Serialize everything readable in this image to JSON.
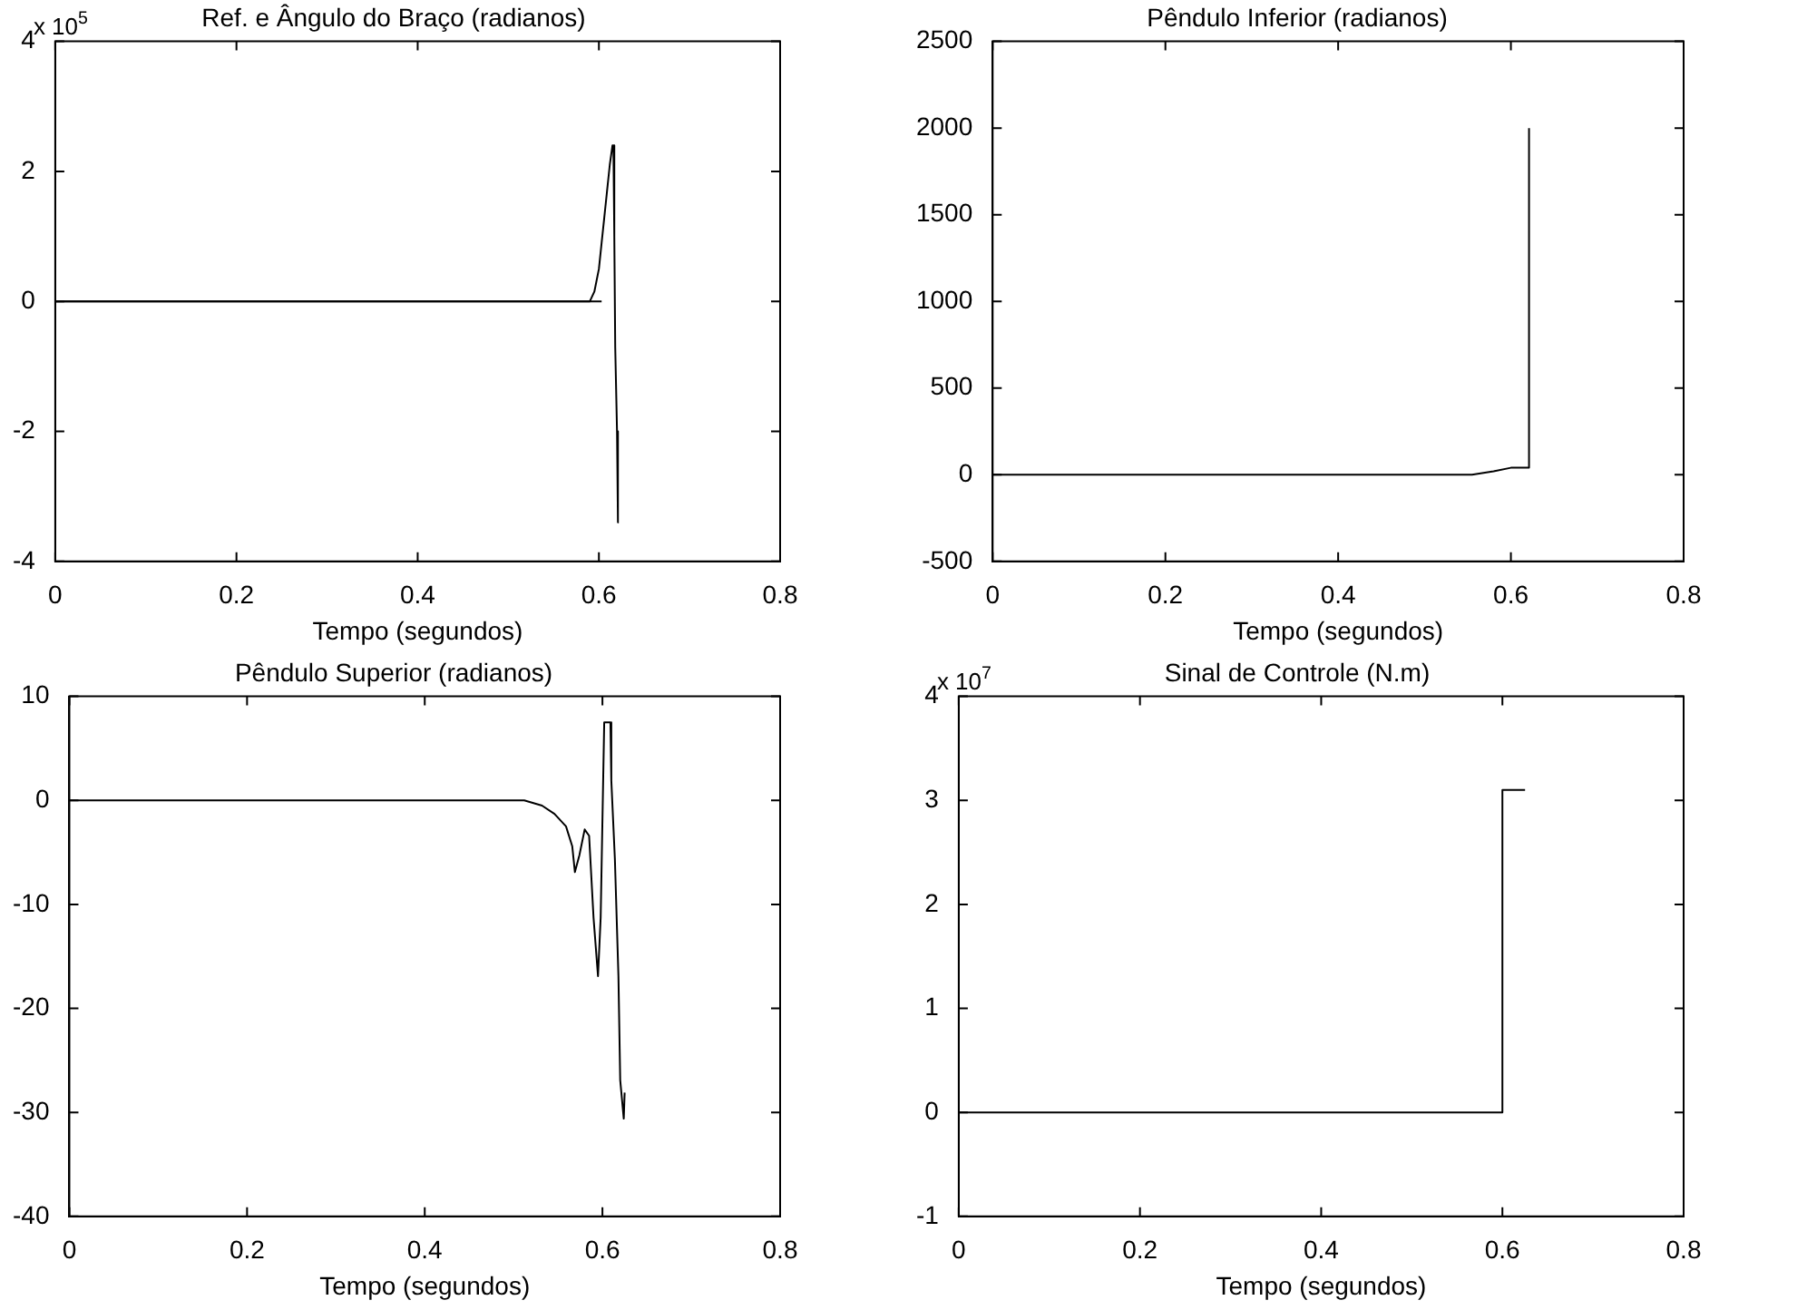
{
  "chart_data": [
    {
      "type": "line",
      "title": "Ref. e Ângulo do Braço (radianos)",
      "xlabel": "Tempo (segundos)",
      "annotations": [
        "x 10$^{5}$"
      ],
      "xlim": [
        0,
        0.8
      ],
      "xticks": [
        0,
        0.2,
        0.4,
        0.6,
        0.8
      ],
      "ylim": [
        -4,
        4
      ],
      "yticks": [
        -4,
        -2,
        0,
        2,
        4
      ],
      "grid": false,
      "legend": false,
      "marker": "none",
      "line_style": "solid",
      "series": [
        {
          "color": "#000000",
          "x": [
            0,
            0.59,
            0.595,
            0.6,
            0.603,
            0.606,
            0.609,
            0.612,
            0.615,
            0.616,
            0.617,
            0.618,
            0.619,
            0.62,
            0.621,
            0.622
          ],
          "values": [
            0,
            0,
            0.15,
            0.5,
            0.9,
            1.3,
            1.7,
            2.1,
            2.4,
            2.4,
            1.0,
            -0.7,
            -0.7,
            -2.0,
            -3.4,
            -3.4
          ]
        },
        {
          "color": "#000000",
          "x": [
            0,
            0.603
          ],
          "values": [
            0,
            0
          ]
        }
      ]
    },
    {
      "type": "line",
      "title": "Pêndulo Inferior (radianos)",
      "xlabel": "Tempo (segundos)",
      "xlim": [
        0,
        0.8
      ],
      "xticks": [
        0,
        0.2,
        0.4,
        0.6,
        0.8
      ],
      "ylim": [
        -500,
        2500
      ],
      "yticks": [
        -500,
        0,
        500,
        1000,
        1500,
        2000,
        2500
      ],
      "grid": false,
      "legend": false,
      "marker": "none",
      "line_style": "solid",
      "series": [
        {
          "color": "#000000",
          "x": [
            0,
            0.555,
            0.58,
            0.6,
            0.62,
            0.621
          ],
          "values": [
            0,
            0,
            20,
            40,
            40,
            2000
          ]
        }
      ]
    },
    {
      "type": "line",
      "title": "Pêndulo Superior (radianos)",
      "xlabel": "Tempo (segundos)",
      "xlim": [
        0,
        0.8
      ],
      "xticks": [
        0,
        0.2,
        0.4,
        0.6,
        0.8
      ],
      "ylim": [
        -40,
        10
      ],
      "yticks": [
        -40,
        -30,
        -20,
        -10,
        0,
        10
      ],
      "grid": false,
      "legend": false,
      "marker": "none",
      "line_style": "solid",
      "series": [
        {
          "color": "#000000",
          "x": [
            0,
            0.512,
            0.532,
            0.546,
            0.559,
            0.566,
            0.569,
            0.574,
            0.58,
            0.585,
            0.59,
            0.595,
            0.598,
            0.602,
            0.609,
            0.61,
            0.614,
            0.618,
            0.62,
            0.624,
            0.625
          ],
          "values": [
            0,
            0,
            -0.5,
            -1.3,
            -2.5,
            -4.4,
            -6.9,
            -5.3,
            -2.8,
            -3.4,
            -11.3,
            -16.9,
            -11.3,
            7.5,
            7.5,
            1.9,
            -5.6,
            -16.9,
            -26.9,
            -30.6,
            -28.1
          ]
        }
      ]
    },
    {
      "type": "line",
      "title": "Sinal de Controle (N.m)",
      "xlabel": "Tempo (segundos)",
      "annotations": [
        "x 10$^{7}$"
      ],
      "xlim": [
        0,
        0.8
      ],
      "xticks": [
        0,
        0.2,
        0.4,
        0.6,
        0.8
      ],
      "ylim": [
        -1,
        4
      ],
      "yticks": [
        -1,
        0,
        1,
        2,
        3,
        4
      ],
      "grid": false,
      "legend": false,
      "marker": "none",
      "line_style": "solid",
      "series": [
        {
          "color": "#000000",
          "x": [
            0,
            0.6,
            0.6,
            0.625
          ],
          "values": [
            0,
            0,
            3.1,
            3.1
          ]
        }
      ]
    }
  ]
}
